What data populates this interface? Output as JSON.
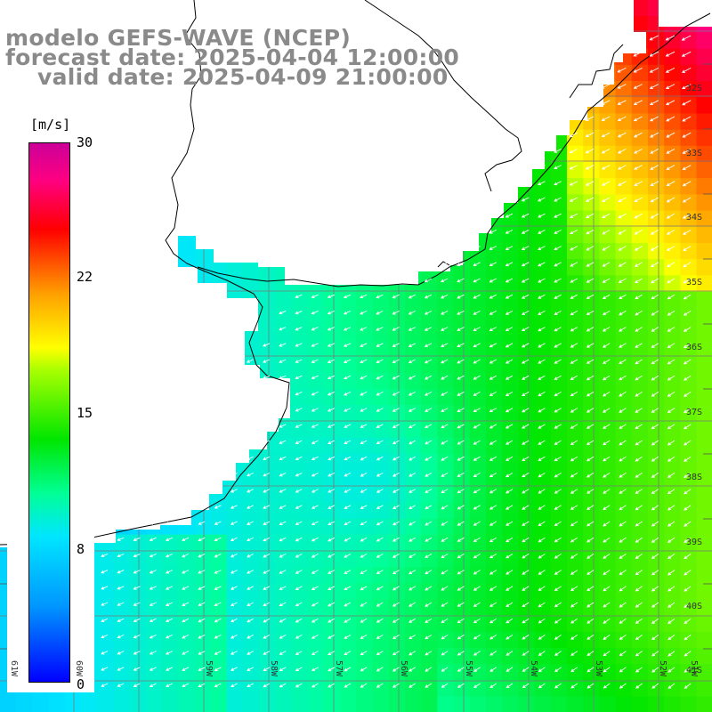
{
  "title": {
    "line1": "modelo GEFS-WAVE (NCEP)",
    "line2": "forecast date: 2025-04-04 12:00:00",
    "line3": "    valid date: 2025-04-09 21:00:00"
  },
  "colorbar": {
    "unit": "[m/s]",
    "ticks": [
      "30",
      "22",
      "15",
      "8",
      "0"
    ],
    "min": 0,
    "max": 30,
    "colors": [
      "#0000ff",
      "#0096ff",
      "#00e6ff",
      "#00ff96",
      "#00e600",
      "#aaff00",
      "#ffff00",
      "#ffa000",
      "#ff0000",
      "#ff0080",
      "#cc0099"
    ]
  },
  "map": {
    "lat_labels": [
      "32S",
      "33S",
      "34S",
      "35S",
      "36S",
      "37S",
      "38S",
      "39S",
      "40S",
      "41S"
    ],
    "lon_labels": [
      "61W",
      "60W",
      "59W",
      "58W",
      "57W",
      "56W",
      "55W",
      "54W",
      "53W",
      "52W",
      "51W"
    ],
    "land_color": "#ffffff",
    "coast_color": "#000000",
    "grid_color": "#808080",
    "arrow_color": "#ffffff",
    "wind_direction": "from the east-northeast toward the southwest"
  }
}
